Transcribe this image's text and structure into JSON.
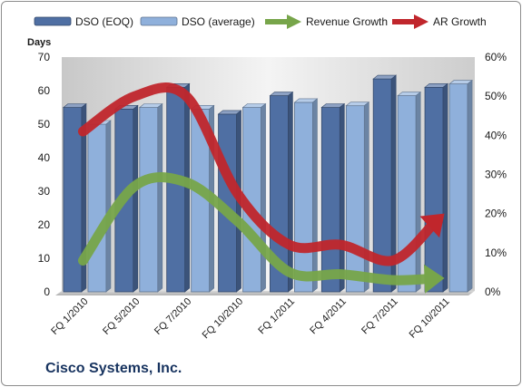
{
  "company": "Cisco Systems, Inc.",
  "chart_data": {
    "type": "bar",
    "categories": [
      "FQ 1/2010",
      "FQ 5/2010",
      "FQ 7/2010",
      "FQ 10/2010",
      "FQ 1/2011",
      "FQ 4/2011",
      "FQ 7/2011",
      "FQ 10/2011"
    ],
    "ylabel": "Days",
    "ylim": [
      0,
      70
    ],
    "y_ticks": [
      "0",
      "10",
      "20",
      "30",
      "40",
      "50",
      "60",
      "70"
    ],
    "y2lim": [
      0,
      0.6
    ],
    "y2_ticks": [
      "0%",
      "10%",
      "20%",
      "30%",
      "40%",
      "50%",
      "60%"
    ],
    "legend_position": "top",
    "grid": false,
    "series": [
      {
        "name": "DSO (EOQ)",
        "kind": "bar",
        "axis": "left",
        "color": "#4f6fa3",
        "values": [
          55,
          54.5,
          61,
          53,
          58.5,
          55,
          63.5,
          61
        ]
      },
      {
        "name": "DSO (average)",
        "kind": "bar",
        "axis": "left",
        "color": "#8fb0db",
        "values": [
          50,
          55,
          54.5,
          55,
          56.5,
          55.5,
          58.5,
          62
        ]
      },
      {
        "name": "Revenue Growth",
        "kind": "line",
        "axis": "right",
        "color": "#77a54a",
        "values": [
          0.08,
          0.27,
          0.28,
          0.18,
          0.05,
          0.045,
          0.03,
          0.035
        ]
      },
      {
        "name": "AR Growth",
        "kind": "line",
        "axis": "right",
        "color": "#c0262c",
        "values": [
          0.41,
          0.5,
          0.5,
          0.25,
          0.12,
          0.12,
          0.08,
          0.2
        ]
      }
    ]
  }
}
